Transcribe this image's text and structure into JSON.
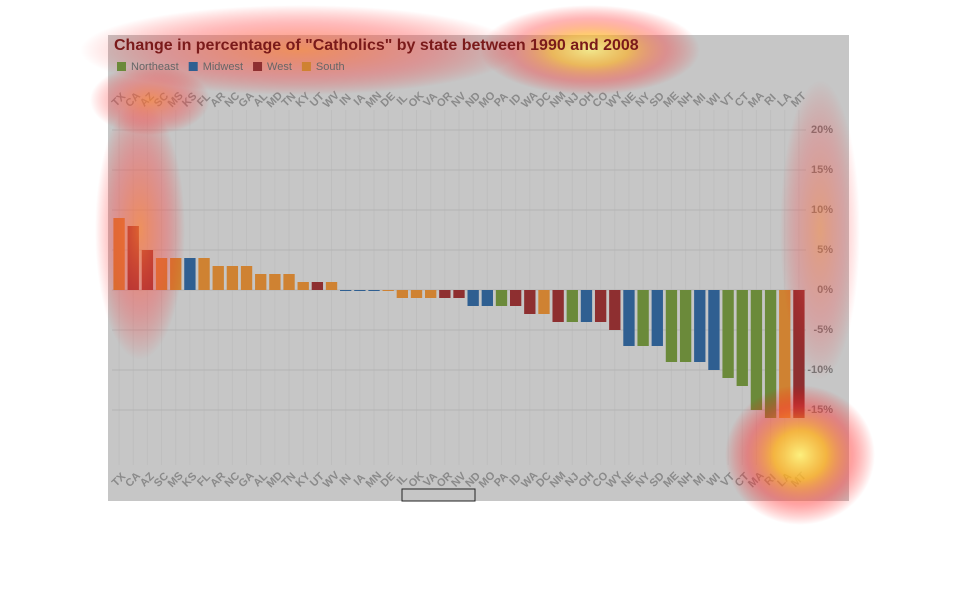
{
  "chart_data": {
    "type": "bar",
    "title": "Change in percentage of \"Catholics\" by state between 1990 and 2008",
    "categories": [
      "TX",
      "CA",
      "AZ",
      "SC",
      "MS",
      "KS",
      "FL",
      "AR",
      "NC",
      "GA",
      "AL",
      "MD",
      "TN",
      "KY",
      "UT",
      "WV",
      "IN",
      "IA",
      "MN",
      "DE",
      "IL",
      "OK",
      "VA",
      "OR",
      "NV",
      "ND",
      "MO",
      "PA",
      "ID",
      "WA",
      "DC",
      "NM",
      "NJ",
      "OH",
      "CO",
      "WY",
      "NE",
      "NY",
      "SD",
      "ME",
      "NH",
      "MI",
      "WI",
      "VT",
      "CT",
      "MA",
      "RI",
      "LA",
      "MT"
    ],
    "series": [
      {
        "name": "Northeast",
        "color": "#6b8a3a",
        "values": [
          null,
          null,
          null,
          null,
          null,
          null,
          null,
          null,
          null,
          null,
          null,
          null,
          null,
          null,
          null,
          null,
          null,
          null,
          null,
          null,
          null,
          null,
          null,
          null,
          null,
          null,
          null,
          -2,
          null,
          null,
          null,
          null,
          -4,
          null,
          null,
          null,
          null,
          -7,
          null,
          -9,
          -9,
          null,
          null,
          -11,
          -12,
          -15,
          -16,
          null,
          null
        ]
      },
      {
        "name": "Midwest",
        "color": "#2f5f91",
        "values": [
          null,
          null,
          null,
          null,
          null,
          4,
          null,
          null,
          null,
          null,
          null,
          null,
          null,
          null,
          null,
          null,
          0,
          0,
          0,
          null,
          null,
          null,
          null,
          null,
          null,
          -2,
          -2,
          null,
          null,
          null,
          null,
          null,
          null,
          -4,
          null,
          null,
          -7,
          null,
          -7,
          null,
          null,
          -9,
          -10,
          null,
          null,
          null,
          null,
          null,
          null
        ]
      },
      {
        "name": "West",
        "color": "#8e2f30",
        "values": [
          null,
          8,
          5,
          null,
          null,
          null,
          null,
          null,
          null,
          null,
          null,
          null,
          null,
          null,
          1,
          null,
          null,
          null,
          null,
          null,
          null,
          null,
          null,
          -1,
          -1,
          null,
          null,
          null,
          -2,
          -3,
          null,
          -4,
          null,
          null,
          -4,
          -5,
          null,
          null,
          null,
          null,
          null,
          null,
          null,
          null,
          null,
          null,
          null,
          null,
          -16
        ]
      },
      {
        "name": "South",
        "color": "#cf8232",
        "values": [
          9,
          null,
          null,
          4,
          4,
          null,
          4,
          3,
          3,
          3,
          2,
          2,
          2,
          1,
          null,
          1,
          null,
          null,
          null,
          0,
          -1,
          -1,
          -1,
          null,
          null,
          null,
          null,
          null,
          null,
          null,
          -3,
          null,
          null,
          null,
          null,
          null,
          null,
          null,
          null,
          null,
          null,
          null,
          null,
          null,
          null,
          null,
          null,
          -16,
          null
        ]
      }
    ],
    "ylim": [
      -20,
      20
    ],
    "yticks": [
      {
        "value": 20,
        "label": "20%"
      },
      {
        "value": 15,
        "label": "15%"
      },
      {
        "value": 10,
        "label": "10%"
      },
      {
        "value": 5,
        "label": "5%"
      },
      {
        "value": 0,
        "label": "0%"
      },
      {
        "value": -5,
        "label": "-5%"
      },
      {
        "value": -10,
        "label": "-10%"
      },
      {
        "value": -15,
        "label": "-15%"
      }
    ],
    "grid": true
  }
}
